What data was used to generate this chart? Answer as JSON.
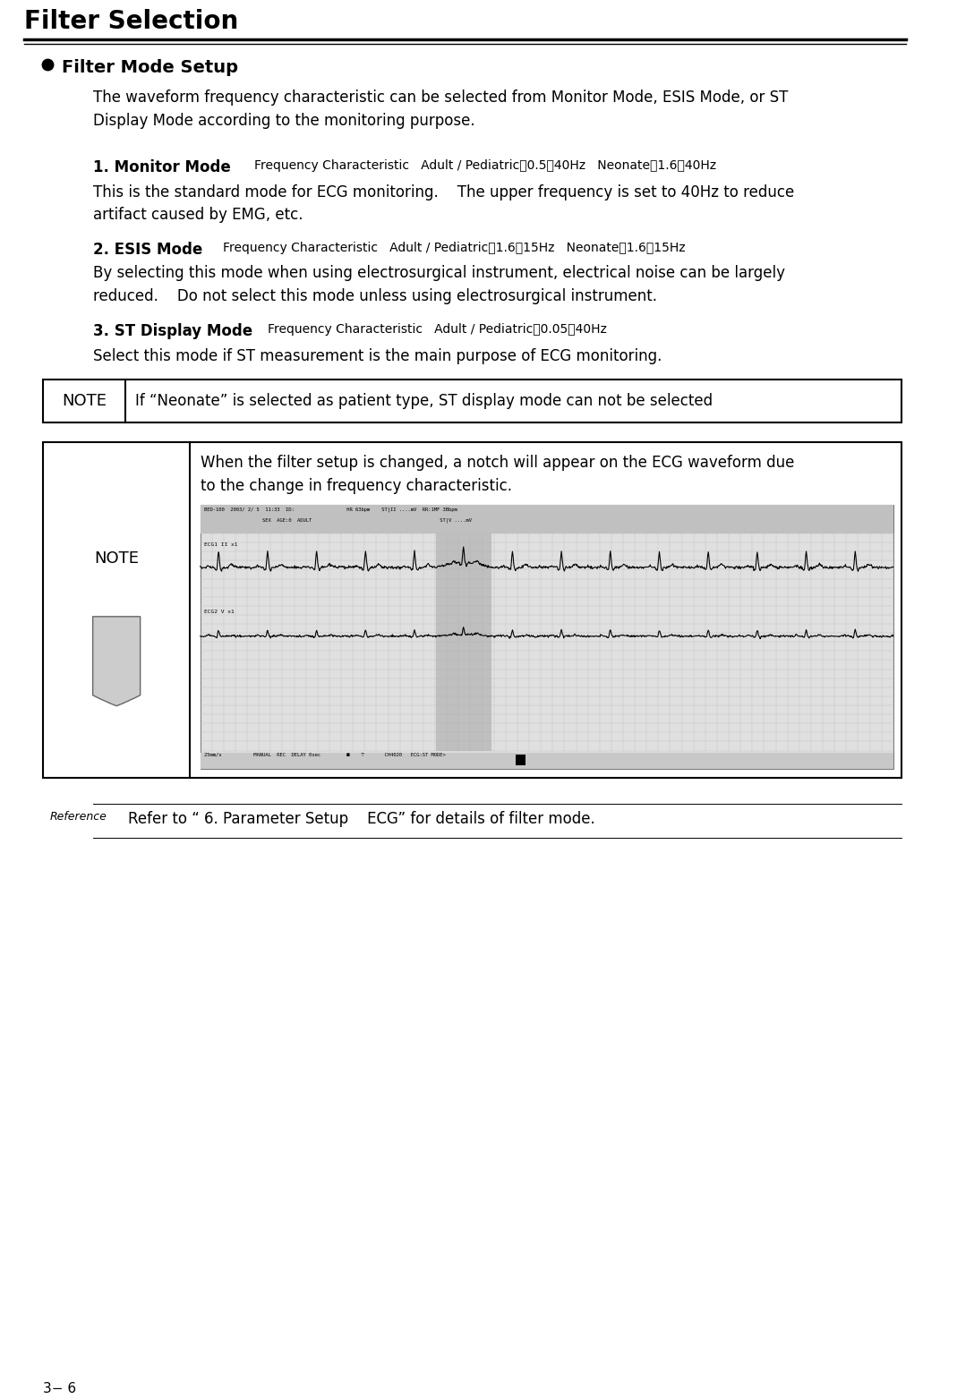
{
  "title": "Filter Selection",
  "section_header": "Filter Mode Setup",
  "intro_text": "The waveform frequency characteristic can be selected from Monitor Mode, ESIS Mode, or ST\nDisplay Mode according to the monitoring purpose.",
  "mode1_bold": "1. Monitor Mode",
  "mode1_freq": "Frequency Characteristic   Adult / Pediatric：0.5～40Hz   Neonate：1.6～40Hz",
  "mode1_desc": "This is the standard mode for ECG monitoring.    The upper frequency is set to 40Hz to reduce\nartifact caused by EMG, etc.",
  "mode2_bold": "2. ESIS Mode",
  "mode2_freq": "Frequency Characteristic   Adult / Pediatric：1.6～15Hz   Neonate：1.6～15Hz",
  "mode2_desc": "By selecting this mode when using electrosurgical instrument, electrical noise can be largely\nreduced.    Do not select this mode unless using electrosurgical instrument.",
  "mode3_bold": "3. ST Display Mode",
  "mode3_freq": "Frequency Characteristic   Adult / Pediatric：0.05～40Hz",
  "mode3_desc": "Select this mode if ST measurement is the main purpose of ECG monitoring.",
  "note1_label": "NOTE",
  "note1_text": "If “Neonate” is selected as patient type, ST display mode can not be selected",
  "note2_label": "NOTE",
  "note2_text": "When the filter setup is changed, a notch will appear on the ECG waveform due\nto the change in frequency characteristic.",
  "reference_label": "Reference",
  "reference_text": "Refer to “ 6. Parameter Setup    ECG” for details of filter mode.",
  "page_number": "3− 6",
  "bg_color": "#ffffff",
  "text_color": "#000000",
  "title_fontsize": 20,
  "header_fontsize": 14,
  "body_fontsize": 12,
  "note_fontsize": 12,
  "small_fontsize": 10
}
